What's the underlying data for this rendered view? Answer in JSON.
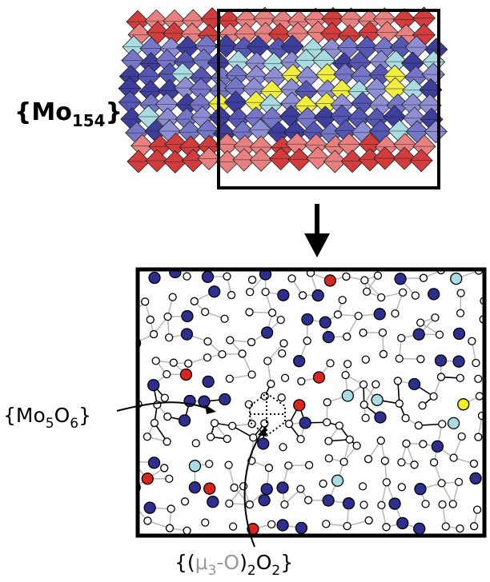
{
  "labels": {
    "cluster": [
      "{Mo",
      "154",
      "}"
    ],
    "fragment": [
      "{Mo",
      "5",
      "O",
      "6",
      "}"
    ],
    "bridge": [
      "{(",
      "μ",
      "3",
      "-O",
      ")",
      "2",
      "O",
      "2",
      "}"
    ]
  }
}
